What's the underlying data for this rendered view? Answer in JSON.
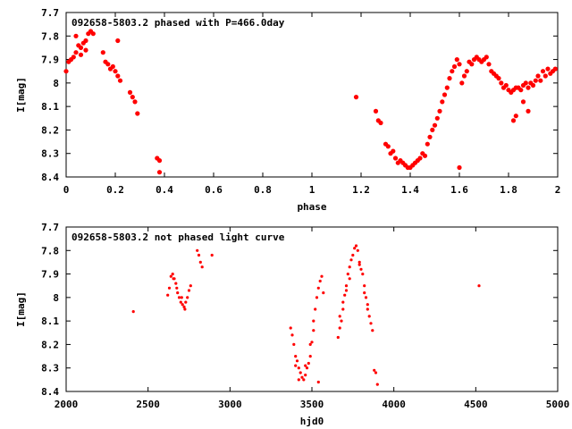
{
  "chart_data": [
    {
      "type": "scatter",
      "title": "092658-5803.2 phased with P=466.0day",
      "xlabel": "phase",
      "ylabel": "I[mag]",
      "xlim": [
        0,
        2
      ],
      "ylim": [
        8.4,
        7.7
      ],
      "y_inverted": true,
      "grid": false,
      "xticks": [
        "0",
        "0.2",
        "0.4",
        "0.6",
        "0.8",
        "1",
        "1.2",
        "1.4",
        "1.6",
        "1.8",
        "2"
      ],
      "yticks": [
        "7.7",
        "7.8",
        "7.9",
        "8",
        "8.1",
        "8.2",
        "8.3",
        "8.4"
      ],
      "marker_color": "#ff0000",
      "marker_size": "large",
      "points": [
        [
          0.0,
          7.95
        ],
        [
          0.01,
          7.91
        ],
        [
          0.02,
          7.9
        ],
        [
          0.03,
          7.89
        ],
        [
          0.04,
          7.87
        ],
        [
          0.05,
          7.84
        ],
        [
          0.06,
          7.85
        ],
        [
          0.07,
          7.83
        ],
        [
          0.08,
          7.82
        ],
        [
          0.09,
          7.79
        ],
        [
          0.1,
          7.78
        ],
        [
          0.11,
          7.79
        ],
        [
          0.04,
          7.8
        ],
        [
          0.06,
          7.88
        ],
        [
          0.08,
          7.86
        ],
        [
          0.15,
          7.87
        ],
        [
          0.17,
          7.92
        ],
        [
          0.19,
          7.93
        ],
        [
          0.2,
          7.95
        ],
        [
          0.21,
          7.97
        ],
        [
          0.22,
          7.99
        ],
        [
          0.21,
          7.82
        ],
        [
          0.16,
          7.91
        ],
        [
          0.18,
          7.94
        ],
        [
          0.26,
          8.04
        ],
        [
          0.27,
          8.06
        ],
        [
          0.28,
          8.08
        ],
        [
          0.29,
          8.13
        ],
        [
          0.37,
          8.32
        ],
        [
          0.38,
          8.33
        ],
        [
          0.38,
          8.38
        ],
        [
          1.18,
          8.06
        ],
        [
          1.26,
          8.12
        ],
        [
          1.27,
          8.16
        ],
        [
          1.28,
          8.17
        ],
        [
          1.3,
          8.26
        ],
        [
          1.31,
          8.27
        ],
        [
          1.32,
          8.3
        ],
        [
          1.33,
          8.29
        ],
        [
          1.34,
          8.32
        ],
        [
          1.35,
          8.34
        ],
        [
          1.36,
          8.33
        ],
        [
          1.37,
          8.34
        ],
        [
          1.38,
          8.35
        ],
        [
          1.39,
          8.36
        ],
        [
          1.4,
          8.36
        ],
        [
          1.41,
          8.35
        ],
        [
          1.42,
          8.34
        ],
        [
          1.43,
          8.33
        ],
        [
          1.44,
          8.32
        ],
        [
          1.45,
          8.3
        ],
        [
          1.46,
          8.31
        ],
        [
          1.47,
          8.26
        ],
        [
          1.48,
          8.23
        ],
        [
          1.49,
          8.2
        ],
        [
          1.5,
          8.18
        ],
        [
          1.51,
          8.15
        ],
        [
          1.52,
          8.12
        ],
        [
          1.53,
          8.08
        ],
        [
          1.54,
          8.05
        ],
        [
          1.55,
          8.02
        ],
        [
          1.56,
          7.98
        ],
        [
          1.57,
          7.95
        ],
        [
          1.58,
          7.93
        ],
        [
          1.59,
          7.9
        ],
        [
          1.6,
          7.92
        ],
        [
          1.61,
          8.0
        ],
        [
          1.62,
          7.97
        ],
        [
          1.63,
          7.95
        ],
        [
          1.64,
          7.91
        ],
        [
          1.65,
          7.92
        ],
        [
          1.66,
          7.9
        ],
        [
          1.67,
          7.89
        ],
        [
          1.68,
          7.9
        ],
        [
          1.69,
          7.91
        ],
        [
          1.7,
          7.9
        ],
        [
          1.71,
          7.89
        ],
        [
          1.72,
          7.92
        ],
        [
          1.73,
          7.95
        ],
        [
          1.74,
          7.96
        ],
        [
          1.75,
          7.97
        ],
        [
          1.76,
          7.98
        ],
        [
          1.77,
          8.0
        ],
        [
          1.78,
          8.02
        ],
        [
          1.79,
          8.01
        ],
        [
          1.8,
          8.03
        ],
        [
          1.81,
          8.04
        ],
        [
          1.82,
          8.03
        ],
        [
          1.83,
          8.02
        ],
        [
          1.84,
          8.02
        ],
        [
          1.85,
          8.03
        ],
        [
          1.86,
          8.01
        ],
        [
          1.87,
          8.0
        ],
        [
          1.88,
          8.02
        ],
        [
          1.89,
          8.0
        ],
        [
          1.9,
          8.01
        ],
        [
          1.91,
          7.99
        ],
        [
          1.92,
          7.97
        ],
        [
          1.93,
          7.99
        ],
        [
          1.94,
          7.95
        ],
        [
          1.95,
          7.97
        ],
        [
          1.96,
          7.94
        ],
        [
          1.97,
          7.96
        ],
        [
          1.98,
          7.95
        ],
        [
          1.99,
          7.94
        ],
        [
          1.6,
          8.36
        ],
        [
          1.82,
          8.16
        ],
        [
          1.83,
          8.14
        ],
        [
          1.86,
          8.08
        ],
        [
          1.88,
          8.12
        ]
      ]
    },
    {
      "type": "scatter",
      "title": "092658-5803.2 not phased light curve",
      "xlabel": "hjd0",
      "ylabel": "I[mag]",
      "xlim": [
        2000,
        5000
      ],
      "ylim": [
        8.4,
        7.7
      ],
      "y_inverted": true,
      "grid": false,
      "xticks": [
        "2000",
        "2500",
        "3000",
        "3500",
        "4000",
        "4500",
        "5000"
      ],
      "yticks": [
        "7.7",
        "7.8",
        "7.9",
        "8",
        "8.1",
        "8.2",
        "8.3",
        "8.4"
      ],
      "marker_color": "#ff0000",
      "marker_size": "small",
      "points": [
        [
          2410,
          8.06
        ],
        [
          2620,
          7.99
        ],
        [
          2630,
          7.96
        ],
        [
          2640,
          7.91
        ],
        [
          2650,
          7.9
        ],
        [
          2660,
          7.92
        ],
        [
          2670,
          7.94
        ],
        [
          2680,
          7.98
        ],
        [
          2690,
          8.0
        ],
        [
          2700,
          8.02
        ],
        [
          2710,
          8.03
        ],
        [
          2720,
          8.04
        ],
        [
          2730,
          8.02
        ],
        [
          2740,
          8.0
        ],
        [
          2750,
          7.97
        ],
        [
          2760,
          7.95
        ],
        [
          2800,
          7.8
        ],
        [
          2810,
          7.82
        ],
        [
          2820,
          7.85
        ],
        [
          2830,
          7.87
        ],
        [
          2890,
          7.82
        ],
        [
          2655,
          7.92
        ],
        [
          2675,
          7.96
        ],
        [
          2705,
          8.0
        ],
        [
          2725,
          8.05
        ],
        [
          3370,
          8.13
        ],
        [
          3380,
          8.16
        ],
        [
          3390,
          8.2
        ],
        [
          3400,
          8.25
        ],
        [
          3410,
          8.27
        ],
        [
          3420,
          8.3
        ],
        [
          3430,
          8.32
        ],
        [
          3440,
          8.34
        ],
        [
          3450,
          8.35
        ],
        [
          3460,
          8.33
        ],
        [
          3470,
          8.3
        ],
        [
          3480,
          8.28
        ],
        [
          3490,
          8.25
        ],
        [
          3500,
          8.19
        ],
        [
          3510,
          8.1
        ],
        [
          3520,
          8.05
        ],
        [
          3530,
          8.0
        ],
        [
          3540,
          7.96
        ],
        [
          3550,
          7.93
        ],
        [
          3560,
          7.91
        ],
        [
          3570,
          7.98
        ],
        [
          3540,
          8.36
        ],
        [
          3400,
          8.29
        ],
        [
          3420,
          8.35
        ],
        [
          3460,
          8.29
        ],
        [
          3490,
          8.2
        ],
        [
          3510,
          8.14
        ],
        [
          3660,
          8.17
        ],
        [
          3670,
          8.13
        ],
        [
          3680,
          8.1
        ],
        [
          3690,
          8.05
        ],
        [
          3700,
          7.99
        ],
        [
          3710,
          7.95
        ],
        [
          3720,
          7.9
        ],
        [
          3730,
          7.87
        ],
        [
          3740,
          7.84
        ],
        [
          3750,
          7.82
        ],
        [
          3760,
          7.79
        ],
        [
          3770,
          7.78
        ],
        [
          3780,
          7.8
        ],
        [
          3790,
          7.85
        ],
        [
          3800,
          7.88
        ],
        [
          3810,
          7.9
        ],
        [
          3820,
          7.95
        ],
        [
          3830,
          8.0
        ],
        [
          3840,
          8.05
        ],
        [
          3850,
          8.08
        ],
        [
          3860,
          8.11
        ],
        [
          3870,
          8.14
        ],
        [
          3880,
          8.31
        ],
        [
          3890,
          8.32
        ],
        [
          3900,
          8.37
        ],
        [
          3670,
          8.08
        ],
        [
          3690,
          8.02
        ],
        [
          3710,
          7.97
        ],
        [
          3730,
          7.92
        ],
        [
          3790,
          7.86
        ],
        [
          3820,
          7.98
        ],
        [
          3840,
          8.03
        ],
        [
          4520,
          7.95
        ]
      ]
    }
  ]
}
